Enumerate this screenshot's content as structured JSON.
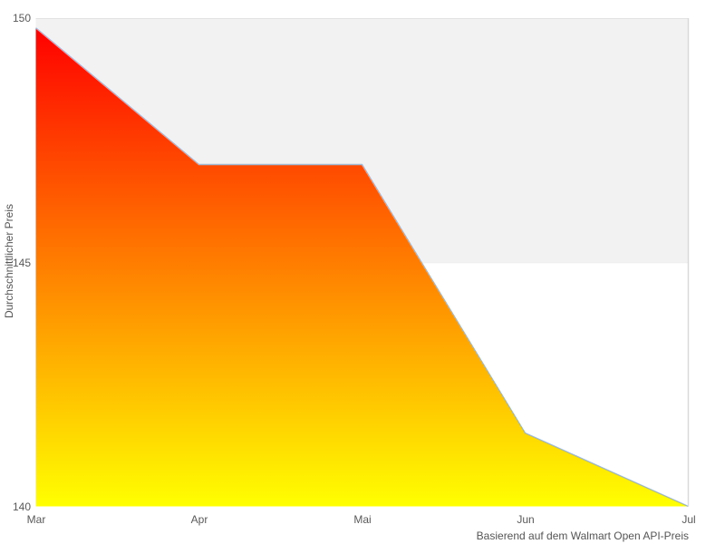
{
  "chart_data": {
    "type": "area",
    "title": "",
    "categories": [
      "Mar",
      "Apr",
      "Mai",
      "Jun",
      "Jul"
    ],
    "values": [
      149.8,
      147.0,
      147.0,
      141.5,
      140.0
    ],
    "xlabel": "",
    "ylabel": "Durchschnittlicher Preis",
    "caption": "Basierend auf dem Walmart Open API-Preis",
    "ylim": [
      140,
      150
    ],
    "yticks": [
      "140",
      "145",
      "150"
    ],
    "grid": "plot-band rows, no vertical gridlines",
    "legend": "none",
    "band": {
      "from": 145,
      "to": 150,
      "color": "#f2f2f2"
    },
    "colors": {
      "gradient_top": "#ff0000",
      "gradient_bottom": "#ffff00",
      "line": "#9fb8d4",
      "band_fill": "#f2f2f2",
      "grid_line": "#e2e2e2",
      "faint_grid_line": "#ececec",
      "plot_border": "#d9d9d9",
      "text": "#595959",
      "background": "#ffffff"
    }
  }
}
